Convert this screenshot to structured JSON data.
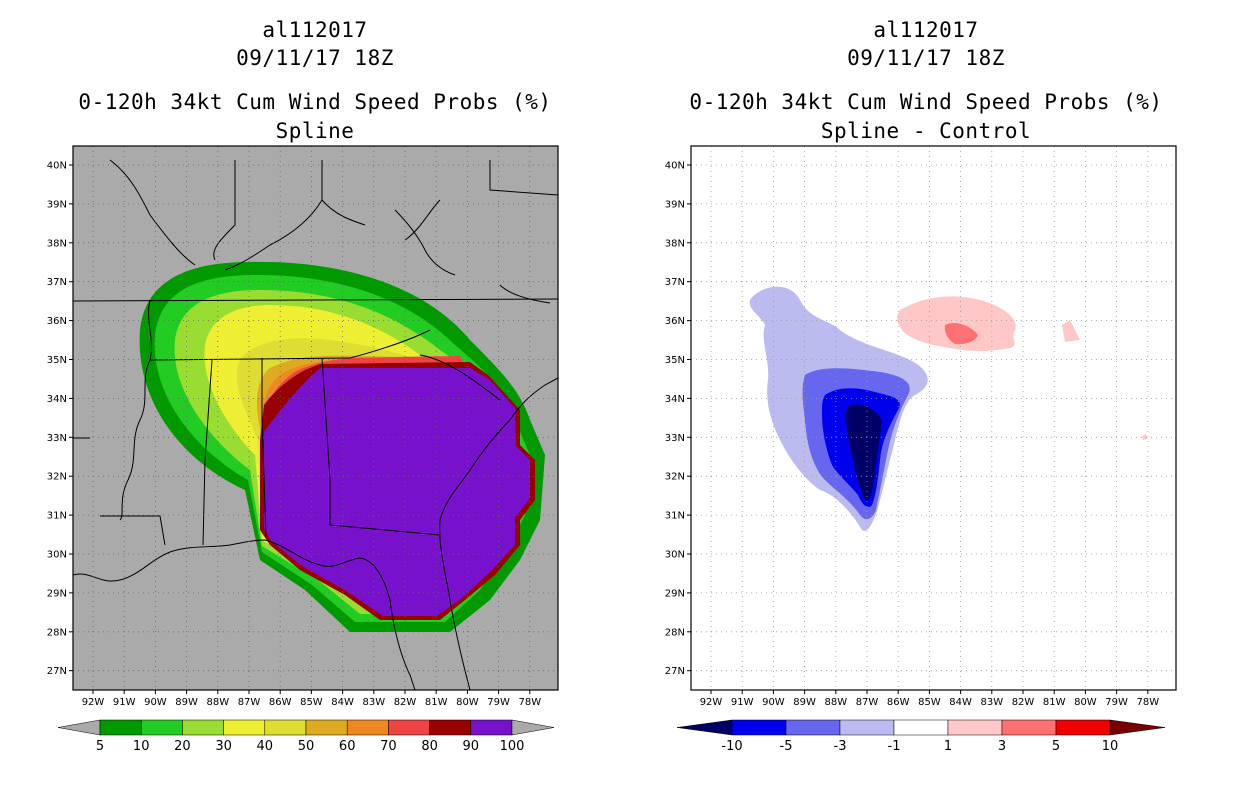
{
  "left_panel": {
    "storm_id": "al112017",
    "datetime": "09/11/17 18Z",
    "product": "0-120h 34kt Cum Wind Speed Probs (%)",
    "subtitle": "Spline",
    "colorbar_labels": [
      "5",
      "10",
      "20",
      "30",
      "40",
      "50",
      "60",
      "70",
      "80",
      "90",
      "100"
    ],
    "colorbar_colors": [
      "#009900",
      "#22cc22",
      "#99dd33",
      "#eeee33",
      "#dddd33",
      "#ddaa22",
      "#ee8822",
      "#ee4444",
      "#990000",
      "#7711cc"
    ]
  },
  "right_panel": {
    "storm_id": "al112017",
    "datetime": "09/11/17 18Z",
    "product": "0-120h 34kt Cum Wind Speed Probs (%)",
    "subtitle": "Spline - Control",
    "colorbar_labels": [
      "-10",
      "-5",
      "-3",
      "-1",
      "1",
      "3",
      "5",
      "10"
    ],
    "colorbar_colors": [
      "#000066",
      "#0000ee",
      "#6666ee",
      "#bbbbf0",
      "#ffffff",
      "#ffc8c8",
      "#ff7070",
      "#ee0000",
      "#770000"
    ]
  },
  "lat_labels": [
    "40N",
    "39N",
    "38N",
    "37N",
    "36N",
    "35N",
    "34N",
    "33N",
    "32N",
    "31N",
    "30N",
    "29N",
    "28N",
    "27N"
  ],
  "lon_labels": [
    "92W",
    "91W",
    "90W",
    "89W",
    "88W",
    "87W",
    "86W",
    "85W",
    "84W",
    "83W",
    "82W",
    "81W",
    "80W",
    "79W",
    "78W"
  ]
}
